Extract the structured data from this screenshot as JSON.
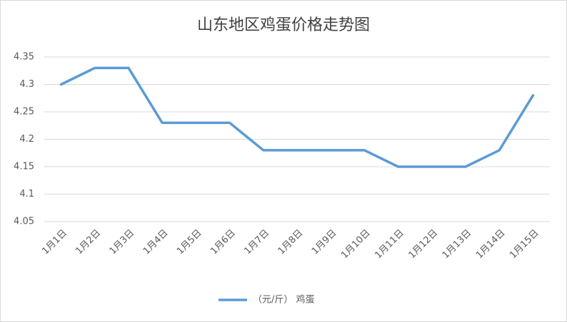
{
  "chart_data": {
    "type": "line",
    "title": "山东地区鸡蛋价格走势图",
    "categories": [
      "1月1日",
      "1月2日",
      "1月3日",
      "1月4日",
      "1月5日",
      "1月6日",
      "1月7日",
      "1月8日",
      "1月9日",
      "1月10日",
      "1月11日",
      "1月12日",
      "1月13日",
      "1月14日",
      "1月15日"
    ],
    "series": [
      {
        "name": "（元/斤） 鸡蛋",
        "color": "#5b9bd5",
        "values": [
          4.3,
          4.33,
          4.33,
          4.23,
          4.23,
          4.23,
          4.18,
          4.18,
          4.18,
          4.18,
          4.15,
          4.15,
          4.15,
          4.18,
          4.28
        ]
      }
    ],
    "ylim": [
      4.05,
      4.35
    ],
    "yticks": [
      4.05,
      4.1,
      4.15,
      4.2,
      4.25,
      4.3,
      4.35
    ],
    "grid": true,
    "legend": "bottom"
  }
}
